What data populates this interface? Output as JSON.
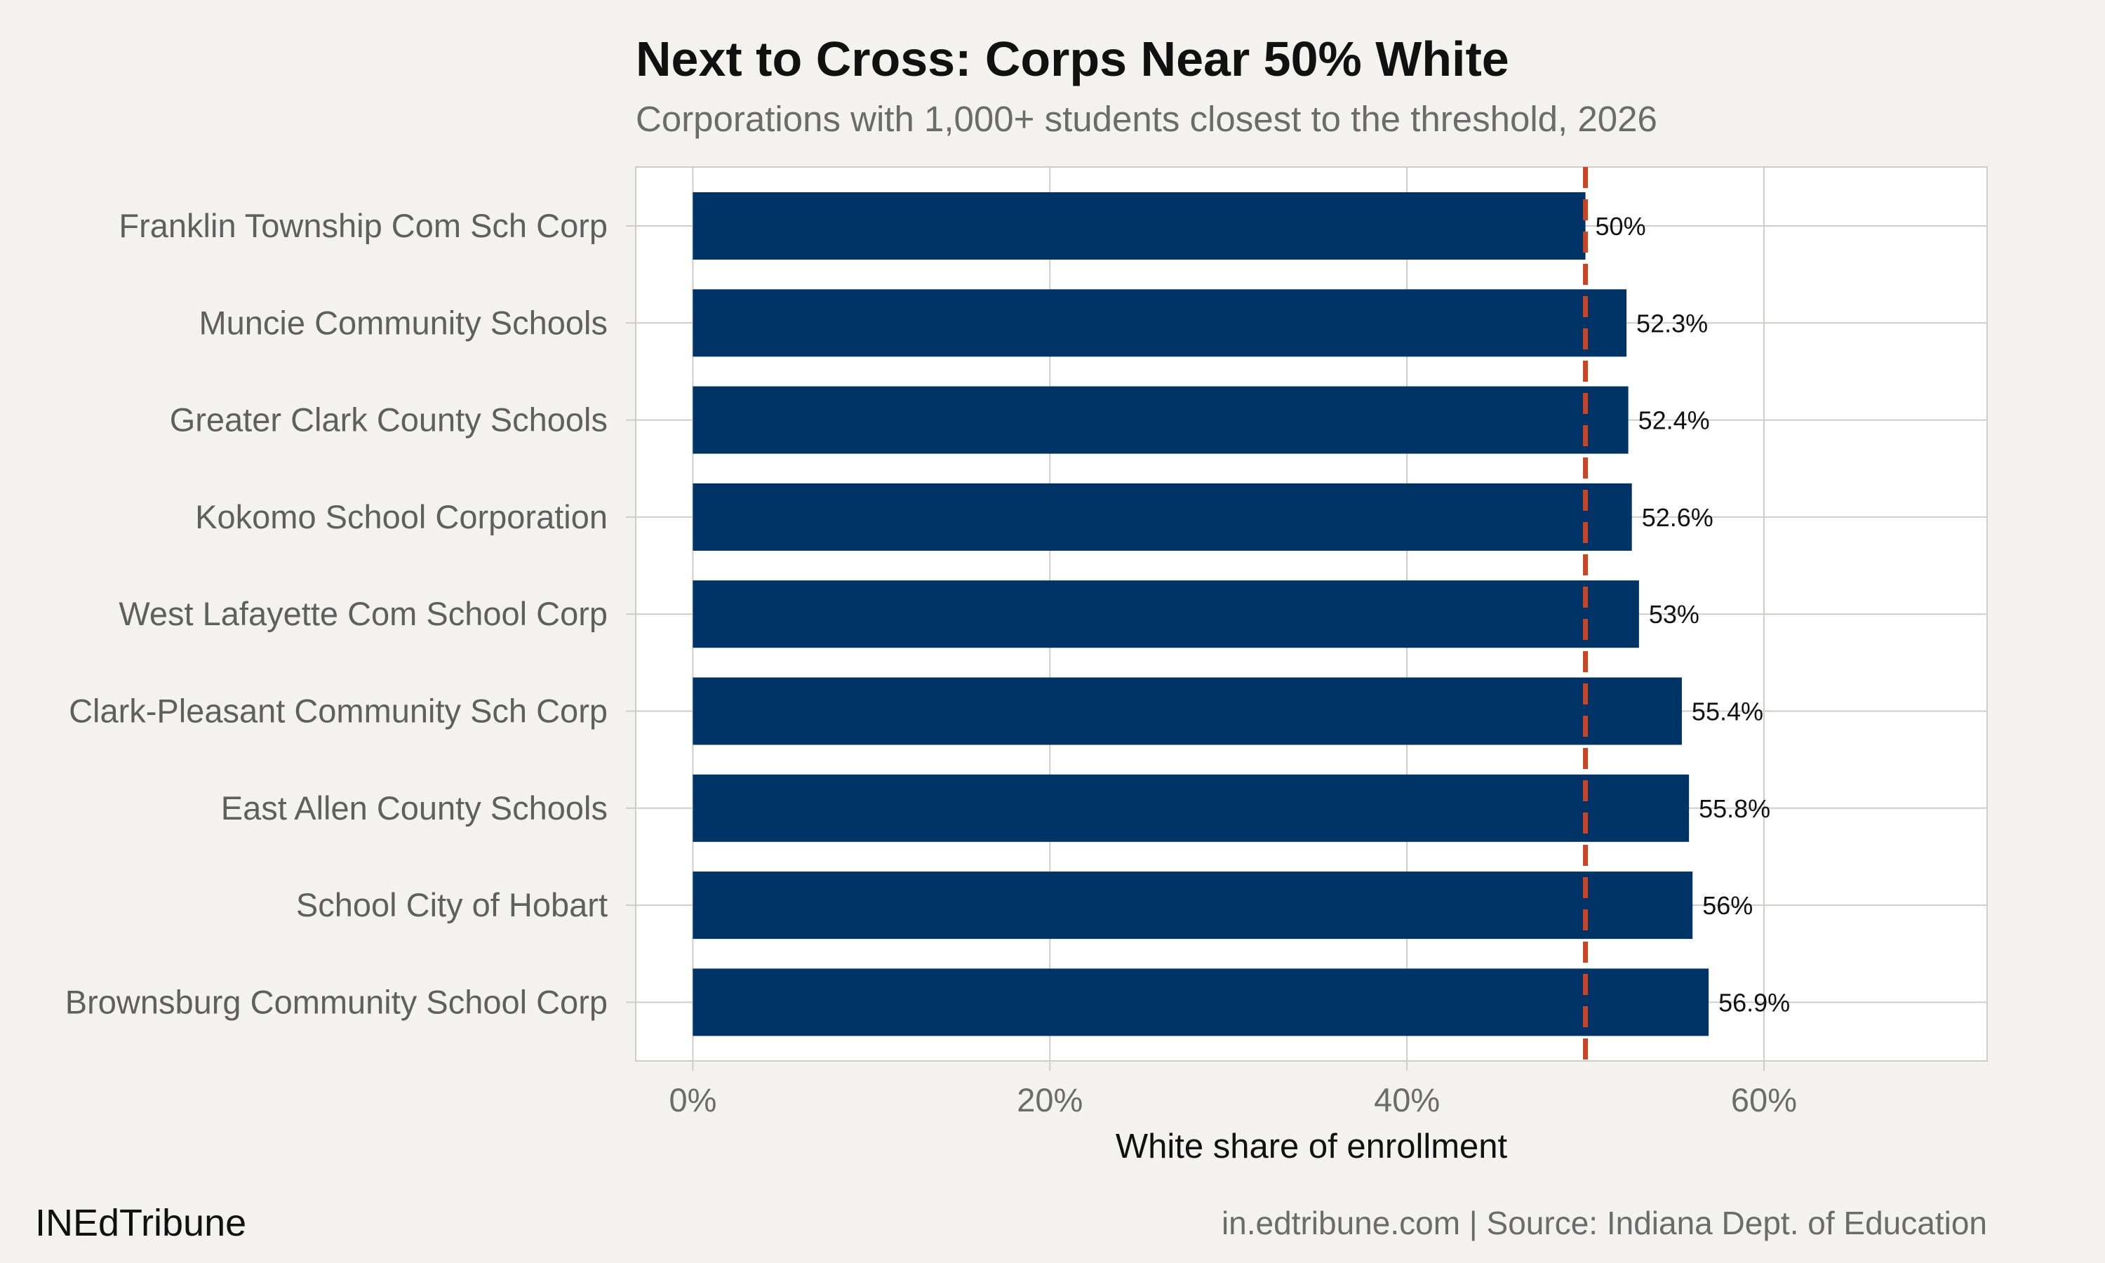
{
  "title": "Next to Cross: Corps Near 50% White",
  "subtitle": "Corporations with 1,000+ students closest to the threshold, 2026",
  "footer": {
    "brand": "INEdTribune",
    "credit": "in.edtribune.com | Source: Indiana Dept. of Education"
  },
  "colors": {
    "background": "#f4f2ee",
    "panel": "#ffffff",
    "bar": "#003366",
    "threshold": "#cc4422",
    "grid": "#cfcdc6"
  },
  "chart_data": {
    "type": "bar",
    "orientation": "horizontal",
    "categories": [
      "Franklin Township Com Sch Corp",
      "Muncie Community Schools",
      "Greater Clark County Schools",
      "Kokomo School Corporation",
      "West Lafayette Com School Corp",
      "Clark-Pleasant Community Sch Corp",
      "East Allen County Schools",
      "School City of Hobart",
      "Brownsburg Community School Corp"
    ],
    "values": [
      50,
      52.3,
      52.4,
      52.6,
      53,
      55.4,
      55.8,
      56,
      56.9
    ],
    "value_labels": [
      "50%",
      "52.3%",
      "52.4%",
      "52.6%",
      "53%",
      "55.4%",
      "55.8%",
      "56%",
      "56.9%"
    ],
    "threshold": 50,
    "xlim": [
      -3.2,
      72.5
    ],
    "xticks": [
      0,
      20,
      40,
      60
    ],
    "xtick_labels": [
      "0%",
      "20%",
      "40%",
      "60%"
    ],
    "xlabel": "White share of enrollment",
    "ylabel": "",
    "grid": true
  }
}
